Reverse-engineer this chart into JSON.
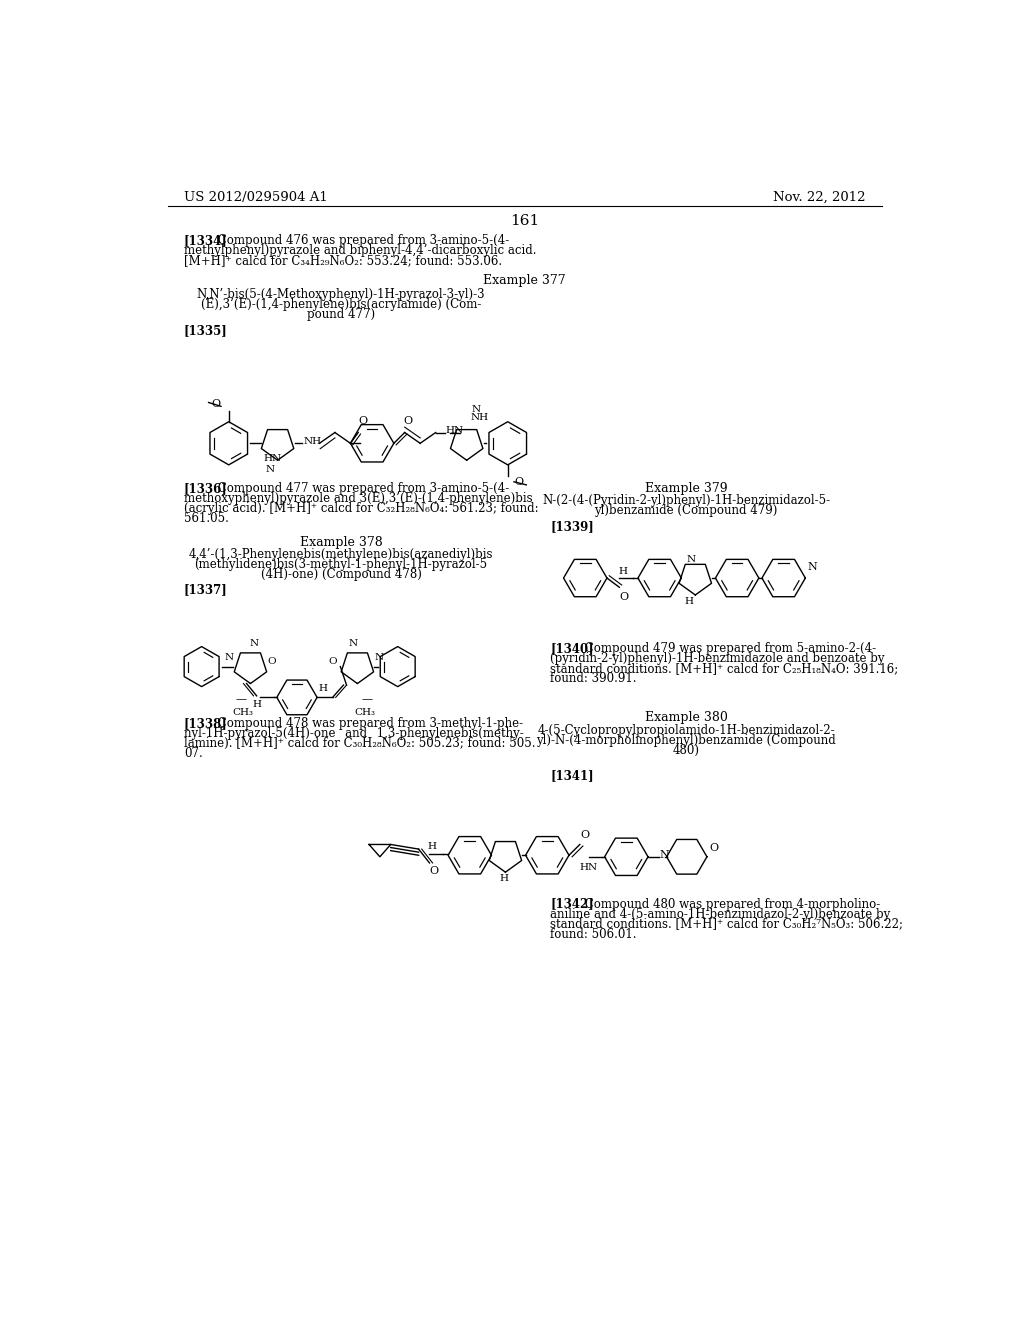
{
  "page_number": "161",
  "header_left": "US 2012/0295904 A1",
  "header_right": "Nov. 22, 2012",
  "background_color": "#ffffff",
  "text_color": "#000000",
  "content": {
    "para1334": "[1334]  Compound 476 was prepared from 3-amino-5-(4-\nmethylphenyl)pyrazole and biphenyl-4,4’-dicarboxylic acid.\n[M+H]⁺ calcd for C₃₄H₂₉N₆O₂: 553.24; found: 553.06.",
    "ex377": "Example 377",
    "name477": "N,N’-bis(5-(4-Methoxyphenyl)-1H-pyrazol-3-yl)-3\n(E),3’(E)-(1,4-phenylene)bis(acrylamide) (Com-\npound 477)",
    "label1335": "[1335]",
    "para1336_bold": "[1336]",
    "para1336": "  Compound 477 was prepared from 3-amino-5-(4-\nmethoxyphenyl)pyrazole and 3(E),3’(E)-(1,4-phenylene)bis\n(acrylic acid). [M+H]⁺ calcd for C₃₂H₂₈N₆O₄: 561.23; found:\n561.05.",
    "ex378": "Example 378",
    "name478": "4,4’-(1,3-Phenylenebis(methylene)bis(azanediyl)bis\n(methylidene)bis(3-methyl-1-phenyl-1H-pyrazol-5\n(4H)-one) (Compound 478)",
    "label1337": "[1337]",
    "para1338_bold": "[1338]",
    "para1338": "  Compound 478 was prepared from 3-methyl-1-phe-\nnyl-1H-pyrazol-5(4H)-one  and  1,3-phenylenebis(methy-\nlamine). [M+H]⁺ calcd for C₃₀H₂₈N₆O₂: 505.23; found: 505.\n07.",
    "ex379": "Example 379",
    "name479": "N-(2-(4-(Pyridin-2-yl)phenyl)-1H-benzimidazol-5-\nyl)benzamide (Compound 479)",
    "label1339": "[1339]",
    "para1340_bold": "[1340]",
    "para1340": "  Compound 479 was prepared from 5-amino-2-(4-\n(pyridin-2-yl)phenyl)-1H-benzimidazole and benzoate by\nstandard conditions. [M+H]⁺ calcd for C₂₅H₁₈N₄O: 391.16;\nfound: 390.91.",
    "ex380": "Example 380",
    "name480": "4-(5-Cyclopropylpropiolamido-1H-benzimidazol-2-\nyl)-N-(4-morpholinophenyl)benzamide (Compound\n480)",
    "label1341": "[1341]",
    "para1342_bold": "[1342]",
    "para1342": "  Compound 480 was prepared from 4-morpholino-\naniline and 4-(5-amino-1H-benzimidazol-2-yl)benzoate by\nstandard conditions. [M+H]⁺ calcd for C₃₀H₂⁷N₅O₃: 506.22;\nfound: 506.01."
  }
}
